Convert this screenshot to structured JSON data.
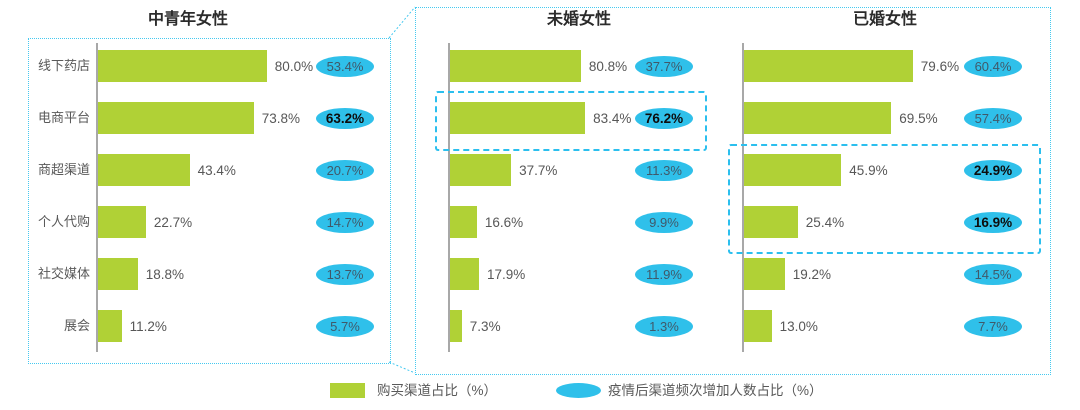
{
  "chart_data": {
    "type": "bar",
    "orientation": "horizontal",
    "unit": "%",
    "categories": [
      "线下药店",
      "电商平台",
      "商超渠道",
      "个人代购",
      "社交媒体",
      "展会"
    ],
    "panels": [
      {
        "title": "中青年女性",
        "highlighted_row_indices": [],
        "rows": [
          {
            "category": "线下药店",
            "bar": 80.0,
            "bar_label": "80.0%",
            "bubble": 53.4,
            "bubble_label": "53.4%",
            "bubble_bold": false
          },
          {
            "category": "电商平台",
            "bar": 73.8,
            "bar_label": "73.8%",
            "bubble": 63.2,
            "bubble_label": "63.2%",
            "bubble_bold": true
          },
          {
            "category": "商超渠道",
            "bar": 43.4,
            "bar_label": "43.4%",
            "bubble": 20.7,
            "bubble_label": "20.7%",
            "bubble_bold": false
          },
          {
            "category": "个人代购",
            "bar": 22.7,
            "bar_label": "22.7%",
            "bubble": 14.7,
            "bubble_label": "14.7%",
            "bubble_bold": false
          },
          {
            "category": "社交媒体",
            "bar": 18.8,
            "bar_label": "18.8%",
            "bubble": 13.7,
            "bubble_label": "13.7%",
            "bubble_bold": false
          },
          {
            "category": "展会",
            "bar": 11.2,
            "bar_label": "11.2%",
            "bubble": 5.7,
            "bubble_label": "5.7%",
            "bubble_bold": false
          }
        ]
      },
      {
        "title": "未婚女性",
        "highlighted_row_indices": [
          1
        ],
        "rows": [
          {
            "category": "线下药店",
            "bar": 80.8,
            "bar_label": "80.8%",
            "bubble": 37.7,
            "bubble_label": "37.7%",
            "bubble_bold": false
          },
          {
            "category": "电商平台",
            "bar": 83.4,
            "bar_label": "83.4%",
            "bubble": 76.2,
            "bubble_label": "76.2%",
            "bubble_bold": true
          },
          {
            "category": "商超渠道",
            "bar": 37.7,
            "bar_label": "37.7%",
            "bubble": 11.3,
            "bubble_label": "11.3%",
            "bubble_bold": false
          },
          {
            "category": "个人代购",
            "bar": 16.6,
            "bar_label": "16.6%",
            "bubble": 9.9,
            "bubble_label": "9.9%",
            "bubble_bold": false
          },
          {
            "category": "社交媒体",
            "bar": 17.9,
            "bar_label": "17.9%",
            "bubble": 11.9,
            "bubble_label": "11.9%",
            "bubble_bold": false
          },
          {
            "category": "展会",
            "bar": 7.3,
            "bar_label": "7.3%",
            "bubble": 1.3,
            "bubble_label": "1.3%",
            "bubble_bold": false
          }
        ]
      },
      {
        "title": "已婚女性",
        "highlighted_row_indices": [
          2,
          3
        ],
        "rows": [
          {
            "category": "线下药店",
            "bar": 79.6,
            "bar_label": "79.6%",
            "bubble": 60.4,
            "bubble_label": "60.4%",
            "bubble_bold": false
          },
          {
            "category": "电商平台",
            "bar": 69.5,
            "bar_label": "69.5%",
            "bubble": 57.4,
            "bubble_label": "57.4%",
            "bubble_bold": false
          },
          {
            "category": "商超渠道",
            "bar": 45.9,
            "bar_label": "45.9%",
            "bubble": 24.9,
            "bubble_label": "24.9%",
            "bubble_bold": true
          },
          {
            "category": "个人代购",
            "bar": 25.4,
            "bar_label": "25.4%",
            "bubble": 16.9,
            "bubble_label": "16.9%",
            "bubble_bold": true
          },
          {
            "category": "社交媒体",
            "bar": 19.2,
            "bar_label": "19.2%",
            "bubble": 14.5,
            "bubble_label": "14.5%",
            "bubble_bold": false
          },
          {
            "category": "展会",
            "bar": 13.0,
            "bar_label": "13.0%",
            "bubble": 7.7,
            "bubble_label": "7.7%",
            "bubble_bold": false
          }
        ]
      }
    ],
    "legend": [
      {
        "swatch": "green-square",
        "label": "购买渠道占比（%）"
      },
      {
        "swatch": "blue-ellipse",
        "label": "疫情后渠道频次增加人数占比（%）"
      }
    ],
    "colors": {
      "bar_green": "#b0d136",
      "bubble_cyan": "#2fc0ea",
      "outline_cyan": "#45c9f0",
      "highlight_cyan": "#2bbfee",
      "axis_gray": "#a8a8a8",
      "text_gray": "#595959"
    }
  }
}
